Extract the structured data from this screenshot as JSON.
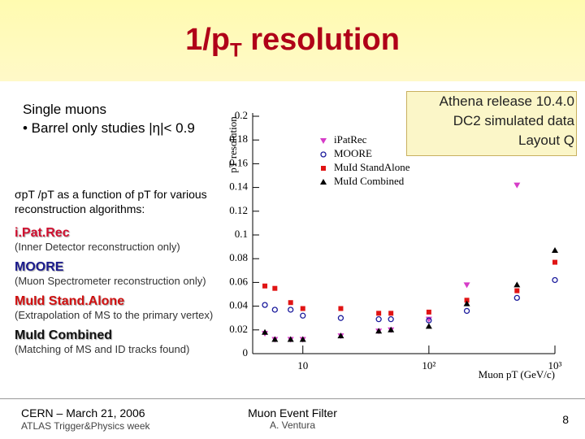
{
  "slide": {
    "title": {
      "main": "1/p",
      "sub": "T",
      "rest": " resolution"
    },
    "intro": [
      "Single muons",
      "• Barrel only studies |η|< 0.9"
    ],
    "box": [
      "Athena release 10.4.0",
      "DC2 simulated data",
      "Layout Q"
    ],
    "description": "σpT /pT  as a function of pT  for various reconstruction algorithms:",
    "algorithms": [
      {
        "name": "i.Pat.Rec",
        "note": "(Inner Detector reconstruction only)"
      },
      {
        "name": "MOORE",
        "note": "(Muon Spectrometer reconstruction only)"
      },
      {
        "name": "MuId Stand.Alone",
        "note": "(Extrapolation of MS to the primary vertex)"
      },
      {
        "name": "MuId Combined",
        "note": "(Matching of MS and ID tracks found)"
      }
    ],
    "footer": {
      "left": "CERN – March 21, 2006",
      "left_sub": "ATLAS Trigger&Physics week",
      "center": "Muon Event Filter",
      "center_sub": "A. Ventura",
      "page": "8"
    }
  },
  "chart_data": {
    "type": "scatter",
    "y_label": "pT resolution",
    "x_label": "Muon pT (GeV/c)",
    "x": [
      5,
      6,
      8,
      10,
      20,
      40,
      50,
      100,
      200,
      500,
      1000
    ],
    "xlim": [
      4,
      1000
    ],
    "xscale": "log",
    "xticks": [
      10,
      {
        "value": 100,
        "label": "10²"
      },
      {
        "value": 1000,
        "label": "10³"
      }
    ],
    "ylim": [
      0,
      0.2
    ],
    "yticks": [
      0,
      0.02,
      0.04,
      0.06,
      0.08,
      0.1,
      0.12,
      0.14,
      0.16,
      0.18,
      0.2
    ],
    "series": [
      {
        "name": "iPatRec",
        "color": "#d63cc8",
        "marker": "triangle-down",
        "values": [
          0.017,
          0.012,
          0.012,
          0.012,
          0.015,
          0.019,
          0.02,
          0.029,
          0.058,
          0.142,
          null
        ]
      },
      {
        "name": "MOORE",
        "color": "#1a1a9c",
        "marker": "circle-open",
        "values": [
          0.041,
          0.037,
          0.037,
          0.032,
          0.03,
          0.029,
          0.029,
          0.028,
          0.036,
          0.047,
          0.062
        ]
      },
      {
        "name": "MuId StandAlone",
        "color": "#e01414",
        "marker": "square",
        "values": [
          0.057,
          0.055,
          0.043,
          0.038,
          0.038,
          0.034,
          0.034,
          0.035,
          0.045,
          0.053,
          0.077
        ]
      },
      {
        "name": "MuId Combined",
        "color": "#000000",
        "marker": "triangle-up",
        "values": [
          0.018,
          0.012,
          0.012,
          0.012,
          0.015,
          0.019,
          0.02,
          0.023,
          0.042,
          0.058,
          0.087
        ]
      }
    ]
  }
}
